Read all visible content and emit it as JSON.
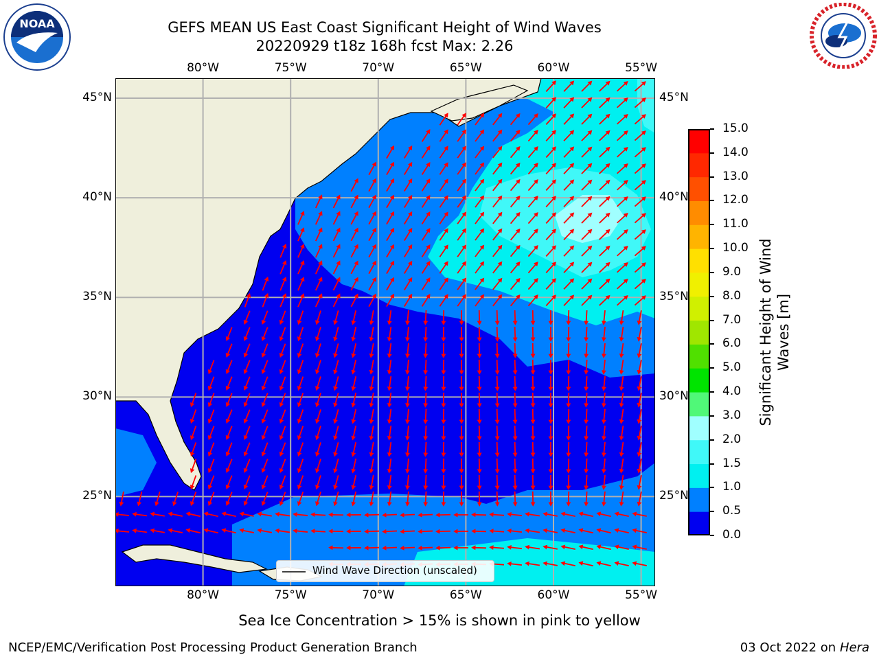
{
  "title": {
    "line1": "GEFS MEAN US East Coast Significant Height of Wind Waves",
    "line2": "20220929 t18z 168h fcst   Max: 2.26"
  },
  "logos": {
    "left": {
      "icon": "noaa-logo-icon",
      "text": "NOAA",
      "ring": "NATIONAL OCEANIC AND ATMOSPHERIC ADMINISTRATION · U.S. DEPARTMENT OF COMMERCE"
    },
    "right": {
      "icon": "nws-logo-icon",
      "ring": "NATIONAL WEATHER SERVICE"
    }
  },
  "map": {
    "lon_labels": [
      "80°W",
      "75°W",
      "70°W",
      "65°W",
      "60°W",
      "55°W"
    ],
    "lat_labels": [
      "45°N",
      "40°N",
      "35°N",
      "30°N",
      "25°N"
    ],
    "lon_values": [
      -80,
      -75,
      -70,
      -65,
      -60,
      -55
    ],
    "lat_values": [
      45,
      40,
      35,
      30,
      25
    ],
    "extent": {
      "lon_min": -85,
      "lon_max": -54.2,
      "lat_min": 20.5,
      "lat_max": 46
    },
    "land_color": "#efefdc",
    "ocean_base_color": "#0000f0",
    "arrow_color": "#ff0000"
  },
  "legend": {
    "label": "Wind Wave Direction (unscaled)"
  },
  "colorbar": {
    "label_line1": "Significant Height of Wind",
    "label_line2": "Waves [m]",
    "ticks": [
      "0.0",
      "0.5",
      "1.0",
      "1.5",
      "2.0",
      "3.0",
      "4.0",
      "5.0",
      "6.0",
      "7.0",
      "8.0",
      "9.0",
      "10.0",
      "11.0",
      "12.0",
      "13.0",
      "14.0",
      "15.0"
    ],
    "colors": [
      "#0000f0",
      "#0080ff",
      "#00f0f0",
      "#40f8f8",
      "#a0ffff",
      "#50f878",
      "#00e400",
      "#50e000",
      "#a0e600",
      "#d0f000",
      "#f0f000",
      "#ffe000",
      "#ffb400",
      "#ff8c00",
      "#ff5000",
      "#ff2800",
      "#ff0000"
    ]
  },
  "note": "Sea Ice Concentration > 15% is shown in pink to yellow",
  "footer": {
    "left": "NCEP/EMC/Verification Post Processing Product Generation Branch",
    "right_prefix": "03 Oct 2022 on ",
    "right_host": "Hera"
  }
}
